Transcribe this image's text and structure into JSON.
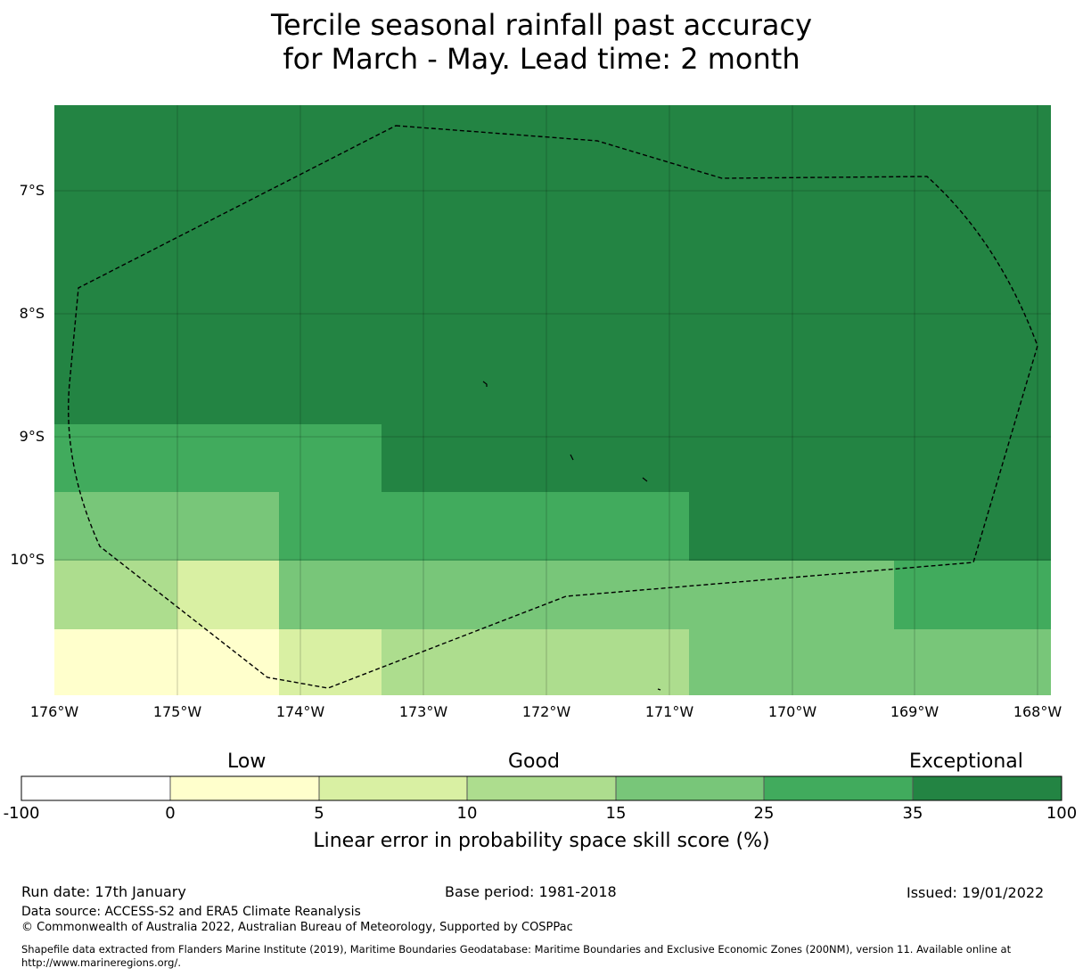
{
  "title": {
    "line1": "Tercile seasonal rainfall past accuracy",
    "line2": "for March - May. Lead time: 2 month"
  },
  "map": {
    "lat_labels": [
      "7°S",
      "8°S",
      "9°S",
      "10°S"
    ],
    "lon_labels": [
      "176°W",
      "175°W",
      "174°W",
      "173°W",
      "172°W",
      "171°W",
      "170°W",
      "169°W",
      "168°W"
    ],
    "skill_grid_colors": [
      "#238443",
      "#41ab5d",
      "#78c679",
      "#addd8e",
      "#d9f0a3",
      "#ffffcc"
    ],
    "boundary_color": "#000000"
  },
  "colorbar": {
    "categories": [
      "Low",
      "Good",
      "Exceptional"
    ],
    "ticks": [
      "-100",
      "0",
      "5",
      "10",
      "15",
      "25",
      "35",
      "100"
    ],
    "colors": [
      "#ffffff",
      "#ffffcc",
      "#d9f0a3",
      "#addd8e",
      "#78c679",
      "#41ab5d",
      "#238443"
    ],
    "label": "Linear error in probability space skill score (%)"
  },
  "footer": {
    "run_date": "Run date: 17th January",
    "base_period": "Base period: 1981-2018",
    "issued": "Issued: 19/01/2022",
    "data_source": "Data source: ACCESS-S2 and ERA5 Climate Reanalysis",
    "copyright": "© Commonwealth of Australia 2022, Australian Bureau of Meteorology, Supported by COSPPac",
    "shapefile_line1": "Shapefile data extracted from Flanders Marine Institute (2019), Maritime Boundaries Geodatabase: Maritime Boundaries and Exclusive Economic Zones (200NM), version 11. Available online at",
    "shapefile_line2": "http://www.marineregions.org/."
  }
}
